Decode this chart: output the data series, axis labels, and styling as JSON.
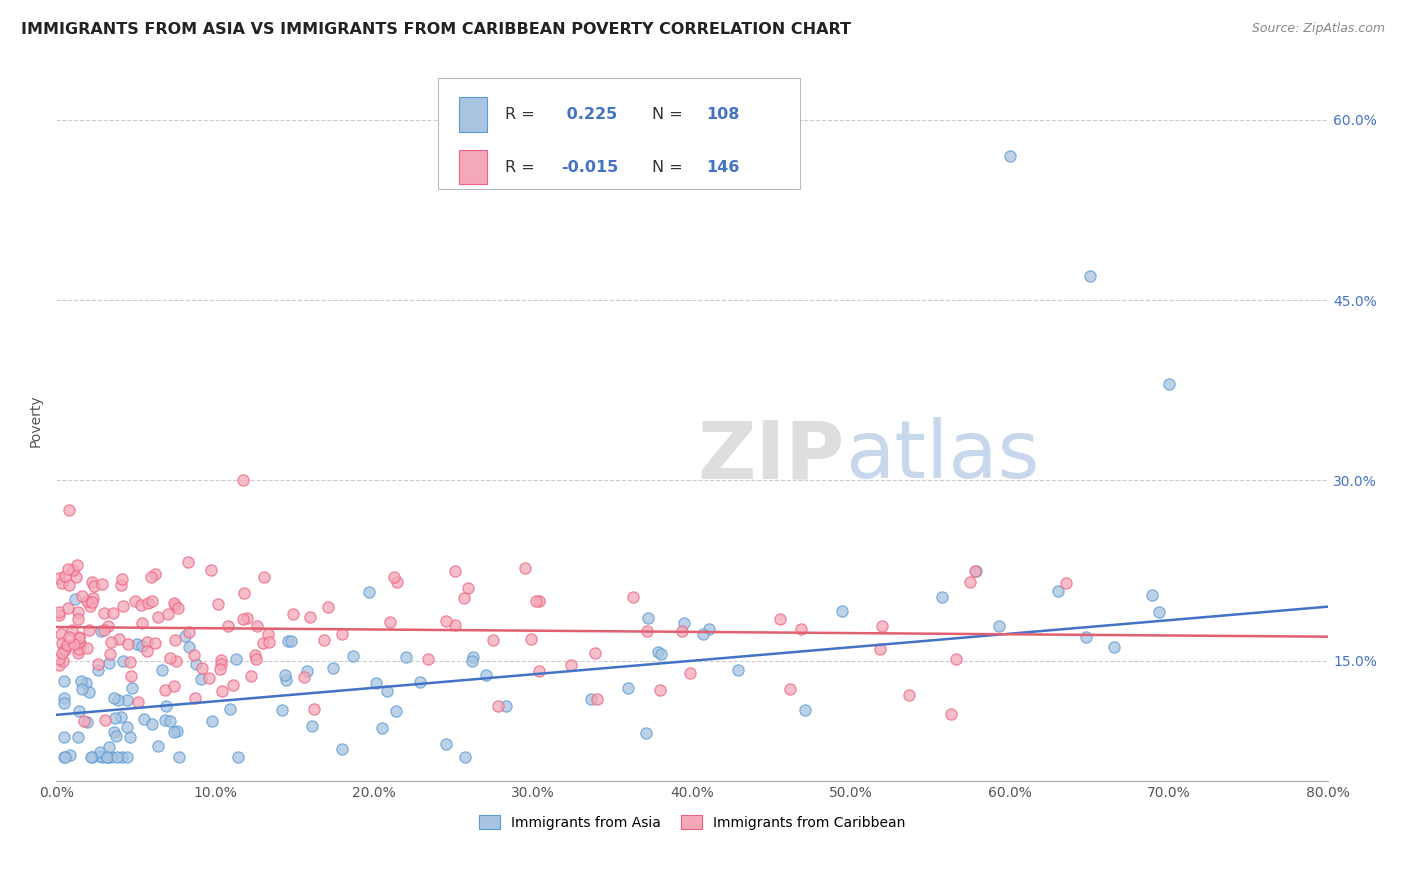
{
  "title": "IMMIGRANTS FROM ASIA VS IMMIGRANTS FROM CARIBBEAN POVERTY CORRELATION CHART",
  "source": "Source: ZipAtlas.com",
  "ylabel": "Poverty",
  "x_min": 0.0,
  "x_max": 80.0,
  "y_min": 5.0,
  "y_max": 65.0,
  "y_ticks": [
    15.0,
    30.0,
    45.0,
    60.0
  ],
  "x_ticks": [
    0.0,
    10.0,
    20.0,
    30.0,
    40.0,
    50.0,
    60.0,
    70.0,
    80.0
  ],
  "legend_r1": "R =  0.225",
  "legend_n1": "N = 108",
  "legend_r2": "R = -0.015",
  "legend_n2": "N = 146",
  "color_asia_fill": "#a8c4e0",
  "color_asia_edge": "#5b9bd5",
  "color_carib_fill": "#f4a8b8",
  "color_carib_edge": "#f06080",
  "color_line_asia": "#4472c4",
  "color_line_carib": "#e06070",
  "color_text_blue": "#4472c4",
  "color_text_black": "#333333",
  "watermark_color": "#d8d8d8",
  "background_color": "#ffffff",
  "grid_color": "#cccccc",
  "asia_line_y0": 10.5,
  "asia_line_y1": 19.5,
  "carib_line_y0": 17.8,
  "carib_line_y1": 17.0
}
